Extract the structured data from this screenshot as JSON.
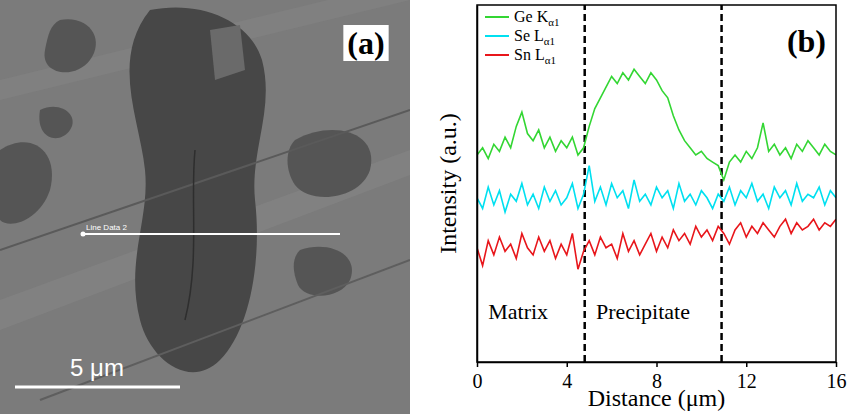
{
  "image_panel": {
    "panel_label": "(a)",
    "line_label": "Line Data 2",
    "scale_bar_label": "5 μm"
  },
  "chart_data": {
    "type": "line",
    "panel_label": "(b)",
    "x_label": "Distance (μm)",
    "y_label": "Intensity (a.u.)",
    "x": [
      0,
      0.25,
      0.5,
      0.75,
      1,
      1.25,
      1.5,
      1.75,
      2,
      2.25,
      2.5,
      2.75,
      3,
      3.25,
      3.5,
      3.75,
      4,
      4.25,
      4.5,
      4.75,
      5,
      5.25,
      5.5,
      5.75,
      6,
      6.25,
      6.5,
      6.75,
      7,
      7.25,
      7.5,
      7.75,
      8,
      8.25,
      8.5,
      8.75,
      9,
      9.25,
      9.5,
      9.75,
      10,
      10.25,
      10.5,
      10.75,
      11,
      11.25,
      11.5,
      11.75,
      12,
      12.25,
      12.5,
      12.75,
      13,
      13.25,
      13.5,
      13.75,
      14,
      14.25,
      14.5,
      14.75,
      15,
      15.25,
      15.5,
      15.75,
      16
    ],
    "series": [
      {
        "name": "Ge Kα1",
        "color": "#33d633",
        "values": [
          58,
          60,
          57,
          61,
          59,
          63,
          60,
          66,
          70,
          64,
          62,
          65,
          60,
          63,
          59,
          62,
          60,
          63,
          58,
          60,
          66,
          71,
          74,
          77,
          80,
          78,
          81,
          79,
          82,
          80,
          78,
          81,
          79,
          76,
          74,
          69,
          65,
          62,
          60,
          58,
          59,
          57,
          56,
          55,
          51,
          56,
          58,
          56,
          59,
          57,
          60,
          67,
          59,
          61,
          58,
          60,
          57,
          61,
          59,
          62,
          60,
          58,
          61,
          59,
          58
        ]
      },
      {
        "name": "Se Lα1",
        "color": "#00e0f0",
        "values": [
          46,
          43,
          49,
          44,
          48,
          42,
          47,
          45,
          50,
          44,
          47,
          43,
          49,
          45,
          48,
          44,
          46,
          50,
          43,
          47,
          55,
          45,
          49,
          44,
          50,
          46,
          48,
          43,
          51,
          45,
          47,
          44,
          49,
          46,
          48,
          43,
          50,
          45,
          47,
          44,
          48,
          46,
          43,
          47,
          45,
          49,
          44,
          48,
          46,
          50,
          45,
          47,
          43,
          49,
          46,
          48,
          44,
          50,
          45,
          47,
          46,
          49,
          44,
          48,
          46
        ]
      },
      {
        "name": "Sn Lα1",
        "color": "#e8161b",
        "values": [
          32,
          27,
          34,
          30,
          35,
          31,
          33,
          29,
          36,
          32,
          30,
          35,
          31,
          34,
          29,
          33,
          30,
          36,
          26,
          31,
          34,
          30,
          35,
          32,
          33,
          29,
          36,
          31,
          34,
          30,
          33,
          36,
          31,
          35,
          32,
          37,
          34,
          36,
          33,
          38,
          35,
          37,
          34,
          38,
          36,
          33,
          37,
          39,
          35,
          38,
          36,
          39,
          37,
          35,
          38,
          40,
          36,
          39,
          37,
          38,
          40,
          37,
          39,
          38,
          40
        ]
      }
    ],
    "xlim": [
      0,
      16
    ],
    "xticks": [
      0,
      4,
      8,
      12,
      16
    ],
    "ylim": [
      0,
      100
    ],
    "tick_labels": "x",
    "legend": "upper left",
    "vlines": [
      4.8,
      10.9
    ],
    "annotations": [
      {
        "text": "Matrix",
        "x": 0.5,
        "y": 12
      },
      {
        "text": "Precipitate",
        "x": 5.3,
        "y": 12
      }
    ]
  }
}
